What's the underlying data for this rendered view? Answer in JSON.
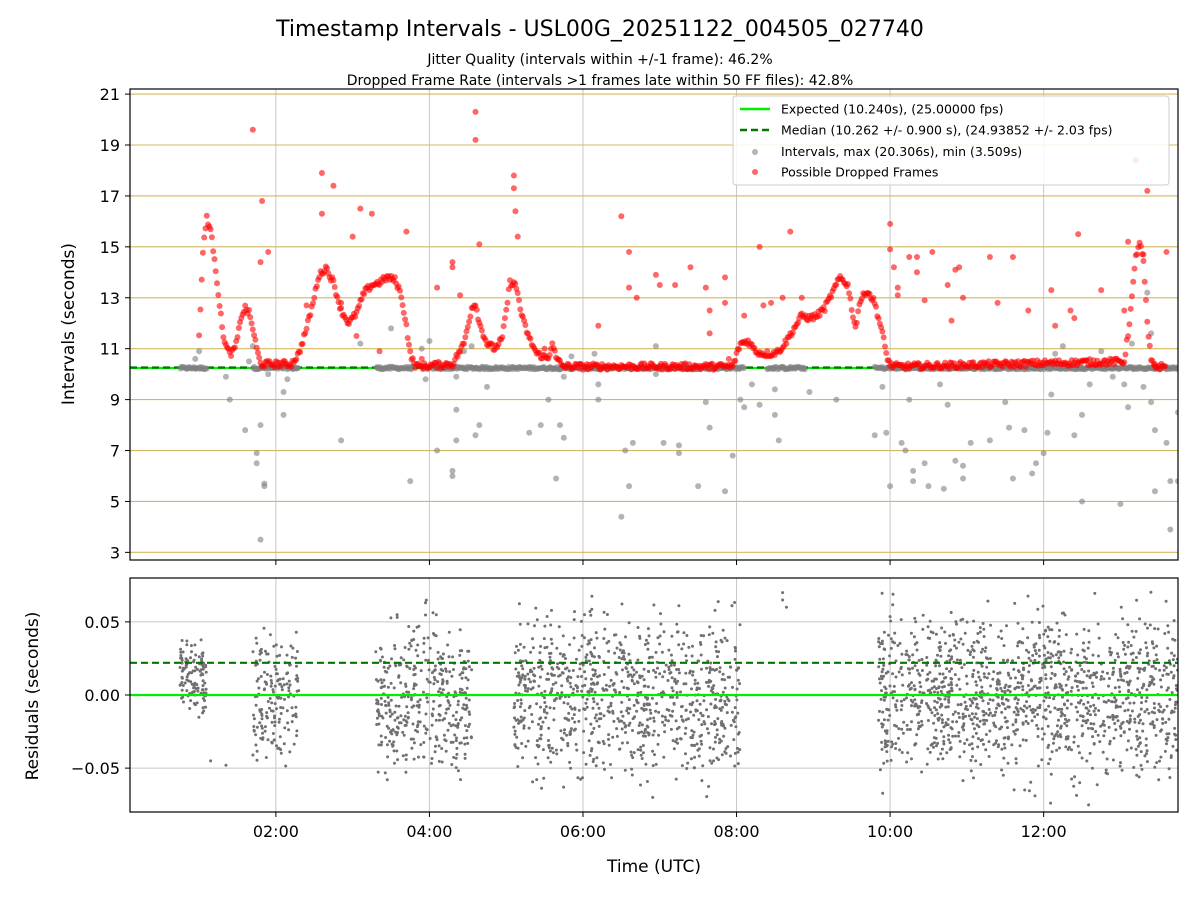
{
  "chart_data": {
    "type": "scatter",
    "title": "Timestamp Intervals - USL00G_20251122_004505_027740",
    "subtitle_1": "Jitter Quality (intervals within +/-1 frame): 46.2%",
    "subtitle_2": "Dropped Frame Rate (intervals >1 frames late within 50 FF files): 42.8%",
    "xlabel": "Time (UTC)",
    "x_unit": "hours (UTC)",
    "xlim": [
      0.1,
      13.75
    ],
    "x_ticks": [
      {
        "value": 2,
        "label": "02:00"
      },
      {
        "value": 4,
        "label": "04:00"
      },
      {
        "value": 6,
        "label": "06:00"
      },
      {
        "value": 8,
        "label": "08:00"
      },
      {
        "value": 10,
        "label": "10:00"
      },
      {
        "value": 12,
        "label": "12:00"
      }
    ],
    "colors": {
      "expected": "#00ee00",
      "median": "#007700",
      "intervals": "#808080",
      "dropped": "#ff0000",
      "interval_grid": "#d4b860",
      "grid": "#c8c8c8",
      "residual_points": "#707070"
    },
    "top_panel": {
      "ylabel": "Intervals (seconds)",
      "ylim": [
        2.7,
        21.2
      ],
      "y_ticks": [
        {
          "value": 3,
          "label": "3"
        },
        {
          "value": 5,
          "label": "5"
        },
        {
          "value": 7,
          "label": "7"
        },
        {
          "value": 9,
          "label": "9"
        },
        {
          "value": 11,
          "label": "11"
        },
        {
          "value": 13,
          "label": "13"
        },
        {
          "value": 15,
          "label": "15"
        },
        {
          "value": 17,
          "label": "17"
        },
        {
          "value": 19,
          "label": "19"
        },
        {
          "value": 21,
          "label": "21"
        }
      ],
      "expected_interval": 10.24,
      "median_interval": 10.262,
      "legend": [
        {
          "key": "expected",
          "label": "Expected (10.240s), (25.00000 fps)"
        },
        {
          "key": "median",
          "label": "Median (10.262 +/- 0.900 s), (24.93852 +/- 2.03 fps)"
        },
        {
          "key": "intervals",
          "label": "Intervals, max (20.306s), min (3.509s)"
        },
        {
          "key": "dropped",
          "label": "Possible Dropped Frames"
        }
      ],
      "legend_position": "top-right",
      "baseline_intervals": {
        "segments": [
          [
            0.75,
            1.1
          ],
          [
            1.7,
            2.3
          ],
          [
            3.3,
            3.8
          ],
          [
            3.9,
            8.1
          ],
          [
            8.4,
            8.9
          ],
          [
            9.8,
            13.75
          ]
        ],
        "level": 10.24,
        "spread": 0.05,
        "approx_count": 780
      },
      "dropped_trend": [
        [
          1.0,
          11.5
        ],
        [
          1.05,
          14.8
        ],
        [
          1.1,
          16.2
        ],
        [
          1.15,
          15.6
        ],
        [
          1.2,
          14.6
        ],
        [
          1.25,
          13.2
        ],
        [
          1.3,
          11.8
        ],
        [
          1.35,
          11.1
        ],
        [
          1.4,
          10.8
        ],
        [
          1.45,
          10.9
        ],
        [
          1.5,
          11.4
        ],
        [
          1.55,
          12.3
        ],
        [
          1.6,
          12.6
        ],
        [
          1.65,
          12.4
        ],
        [
          1.7,
          11.8
        ],
        [
          1.75,
          11.0
        ],
        [
          1.8,
          10.4
        ],
        [
          2.2,
          10.4
        ],
        [
          2.3,
          10.8
        ],
        [
          2.4,
          11.8
        ],
        [
          2.5,
          13.0
        ],
        [
          2.55,
          13.8
        ],
        [
          2.65,
          14.2
        ],
        [
          2.75,
          13.6
        ],
        [
          2.85,
          12.5
        ],
        [
          2.95,
          12.0
        ],
        [
          3.05,
          12.4
        ],
        [
          3.15,
          13.2
        ],
        [
          3.25,
          13.5
        ],
        [
          3.35,
          13.6
        ],
        [
          3.45,
          13.8
        ],
        [
          3.55,
          13.7
        ],
        [
          3.6,
          13.4
        ],
        [
          3.65,
          12.8
        ],
        [
          3.7,
          11.9
        ],
        [
          3.75,
          10.8
        ],
        [
          3.8,
          10.4
        ],
        [
          3.85,
          10.3
        ],
        [
          4.3,
          10.4
        ],
        [
          4.45,
          11.2
        ],
        [
          4.55,
          12.6
        ],
        [
          4.6,
          12.8
        ],
        [
          4.65,
          12.0
        ],
        [
          4.75,
          11.2
        ],
        [
          4.85,
          11.0
        ],
        [
          4.95,
          11.4
        ],
        [
          5.0,
          12.5
        ],
        [
          5.05,
          13.6
        ],
        [
          5.1,
          13.6
        ],
        [
          5.15,
          13.2
        ],
        [
          5.2,
          12.3
        ],
        [
          5.3,
          11.4
        ],
        [
          5.4,
          10.8
        ],
        [
          5.55,
          10.6
        ],
        [
          5.6,
          11.3
        ],
        [
          5.65,
          10.6
        ],
        [
          5.75,
          10.3
        ],
        [
          7.95,
          10.3
        ],
        [
          8.05,
          11.2
        ],
        [
          8.15,
          11.3
        ],
        [
          8.25,
          10.9
        ],
        [
          8.35,
          10.8
        ],
        [
          8.45,
          10.8
        ],
        [
          8.55,
          10.9
        ],
        [
          8.65,
          11.3
        ],
        [
          8.75,
          11.8
        ],
        [
          8.85,
          12.3
        ],
        [
          8.95,
          12.2
        ],
        [
          9.05,
          12.3
        ],
        [
          9.15,
          12.6
        ],
        [
          9.25,
          13.2
        ],
        [
          9.35,
          13.8
        ],
        [
          9.45,
          13.5
        ],
        [
          9.5,
          12.6
        ],
        [
          9.55,
          11.8
        ],
        [
          9.6,
          12.8
        ],
        [
          9.7,
          13.3
        ],
        [
          9.8,
          12.8
        ],
        [
          9.9,
          11.6
        ],
        [
          9.95,
          10.8
        ],
        [
          10.0,
          10.35
        ],
        [
          10.1,
          10.3
        ],
        [
          13.05,
          10.5
        ],
        [
          13.1,
          11.6
        ],
        [
          13.15,
          13.0
        ],
        [
          13.2,
          14.6
        ],
        [
          13.25,
          15.2
        ],
        [
          13.3,
          14.4
        ],
        [
          13.35,
          12.0
        ],
        [
          13.4,
          10.5
        ],
        [
          13.45,
          10.3
        ],
        [
          13.6,
          10.3
        ]
      ],
      "dropped_outliers": [
        [
          1.7,
          19.6
        ],
        [
          1.82,
          16.8
        ],
        [
          1.8,
          14.4
        ],
        [
          1.9,
          14.8
        ],
        [
          2.4,
          12.7
        ],
        [
          2.6,
          17.9
        ],
        [
          2.6,
          16.3
        ],
        [
          2.75,
          17.4
        ],
        [
          2.85,
          12.8
        ],
        [
          3.0,
          15.4
        ],
        [
          3.1,
          16.5
        ],
        [
          3.25,
          16.3
        ],
        [
          3.05,
          11.5
        ],
        [
          3.35,
          10.9
        ],
        [
          3.7,
          15.6
        ],
        [
          3.9,
          10.6
        ],
        [
          4.1,
          13.4
        ],
        [
          4.3,
          14.4
        ],
        [
          4.3,
          14.2
        ],
        [
          4.4,
          13.1
        ],
        [
          4.6,
          20.3
        ],
        [
          4.6,
          19.2
        ],
        [
          4.65,
          15.1
        ],
        [
          5.1,
          17.8
        ],
        [
          5.1,
          17.3
        ],
        [
          5.12,
          16.4
        ],
        [
          5.15,
          15.4
        ],
        [
          5.5,
          11.0
        ],
        [
          6.2,
          11.9
        ],
        [
          6.5,
          16.2
        ],
        [
          6.6,
          14.8
        ],
        [
          6.6,
          13.4
        ],
        [
          6.7,
          13.0
        ],
        [
          6.95,
          13.9
        ],
        [
          7.0,
          13.5
        ],
        [
          7.2,
          13.5
        ],
        [
          7.4,
          14.2
        ],
        [
          7.6,
          13.4
        ],
        [
          7.65,
          12.5
        ],
        [
          7.65,
          11.6
        ],
        [
          7.85,
          13.8
        ],
        [
          7.85,
          12.8
        ],
        [
          7.9,
          10.6
        ],
        [
          8.1,
          12.3
        ],
        [
          8.3,
          15.0
        ],
        [
          8.35,
          12.7
        ],
        [
          8.45,
          12.8
        ],
        [
          8.6,
          13.0
        ],
        [
          8.7,
          15.6
        ],
        [
          8.85,
          13.0
        ],
        [
          10.0,
          15.9
        ],
        [
          10.0,
          14.9
        ],
        [
          10.05,
          14.2
        ],
        [
          10.1,
          13.4
        ],
        [
          10.1,
          13.1
        ],
        [
          10.25,
          14.6
        ],
        [
          10.35,
          14.0
        ],
        [
          10.35,
          14.6
        ],
        [
          10.45,
          12.9
        ],
        [
          10.55,
          14.8
        ],
        [
          10.75,
          13.5
        ],
        [
          10.8,
          12.1
        ],
        [
          10.85,
          14.1
        ],
        [
          10.9,
          14.2
        ],
        [
          10.95,
          13.0
        ],
        [
          11.3,
          14.6
        ],
        [
          11.4,
          12.8
        ],
        [
          11.6,
          14.6
        ],
        [
          11.8,
          12.5
        ],
        [
          12.1,
          13.3
        ],
        [
          12.15,
          11.9
        ],
        [
          12.35,
          12.5
        ],
        [
          12.4,
          12.2
        ],
        [
          12.45,
          15.5
        ],
        [
          12.75,
          13.3
        ],
        [
          13.05,
          12.5
        ],
        [
          13.1,
          15.2
        ],
        [
          13.2,
          18.4
        ],
        [
          13.3,
          14.7
        ],
        [
          13.35,
          17.2
        ],
        [
          13.45,
          10.4
        ],
        [
          13.6,
          14.8
        ]
      ],
      "interval_outliers": [
        [
          0.95,
          10.6
        ],
        [
          1.0,
          10.9
        ],
        [
          1.35,
          9.9
        ],
        [
          1.4,
          9.0
        ],
        [
          1.6,
          7.8
        ],
        [
          1.65,
          10.5
        ],
        [
          1.7,
          11.1
        ],
        [
          1.75,
          6.9
        ],
        [
          1.75,
          6.5
        ],
        [
          1.8,
          3.5
        ],
        [
          1.8,
          8.0
        ],
        [
          1.85,
          5.6
        ],
        [
          1.85,
          5.7
        ],
        [
          1.9,
          10.0
        ],
        [
          2.1,
          8.4
        ],
        [
          2.1,
          9.3
        ],
        [
          2.15,
          9.8
        ],
        [
          2.85,
          7.4
        ],
        [
          3.1,
          11.2
        ],
        [
          3.5,
          11.8
        ],
        [
          3.75,
          5.8
        ],
        [
          3.9,
          11.0
        ],
        [
          3.95,
          9.8
        ],
        [
          4.0,
          11.3
        ],
        [
          4.1,
          7.0
        ],
        [
          4.3,
          6.2
        ],
        [
          4.3,
          6.0
        ],
        [
          4.35,
          7.4
        ],
        [
          4.35,
          8.6
        ],
        [
          4.35,
          9.9
        ],
        [
          4.45,
          10.9
        ],
        [
          4.55,
          11.1
        ],
        [
          4.6,
          7.6
        ],
        [
          4.65,
          8.0
        ],
        [
          4.75,
          9.5
        ],
        [
          5.3,
          7.7
        ],
        [
          5.45,
          8.0
        ],
        [
          5.55,
          9.0
        ],
        [
          5.65,
          5.9
        ],
        [
          5.7,
          8.0
        ],
        [
          5.75,
          7.5
        ],
        [
          5.75,
          9.9
        ],
        [
          5.85,
          10.7
        ],
        [
          6.15,
          10.8
        ],
        [
          6.2,
          9.6
        ],
        [
          6.2,
          9.0
        ],
        [
          6.5,
          4.4
        ],
        [
          6.55,
          7.0
        ],
        [
          6.6,
          5.6
        ],
        [
          6.65,
          7.3
        ],
        [
          6.95,
          11.1
        ],
        [
          6.95,
          10.0
        ],
        [
          7.05,
          7.3
        ],
        [
          7.25,
          7.2
        ],
        [
          7.25,
          6.9
        ],
        [
          7.5,
          5.6
        ],
        [
          7.6,
          8.9
        ],
        [
          7.65,
          7.9
        ],
        [
          7.85,
          5.4
        ],
        [
          7.95,
          6.8
        ],
        [
          8.05,
          9.0
        ],
        [
          8.1,
          8.7
        ],
        [
          8.2,
          9.6
        ],
        [
          8.3,
          8.8
        ],
        [
          8.5,
          9.4
        ],
        [
          8.5,
          8.4
        ],
        [
          8.55,
          7.4
        ],
        [
          8.95,
          9.3
        ],
        [
          9.3,
          9.0
        ],
        [
          9.8,
          7.6
        ],
        [
          9.9,
          9.5
        ],
        [
          9.95,
          7.7
        ],
        [
          10.0,
          5.6
        ],
        [
          10.15,
          7.3
        ],
        [
          10.2,
          7.0
        ],
        [
          10.25,
          9.0
        ],
        [
          10.3,
          6.2
        ],
        [
          10.3,
          5.8
        ],
        [
          10.45,
          6.5
        ],
        [
          10.5,
          5.6
        ],
        [
          10.65,
          9.6
        ],
        [
          10.7,
          5.5
        ],
        [
          10.75,
          8.8
        ],
        [
          10.85,
          6.6
        ],
        [
          10.95,
          6.4
        ],
        [
          10.95,
          5.9
        ],
        [
          11.05,
          7.3
        ],
        [
          11.3,
          7.4
        ],
        [
          11.5,
          8.9
        ],
        [
          11.55,
          7.9
        ],
        [
          11.6,
          5.9
        ],
        [
          11.75,
          7.8
        ],
        [
          11.85,
          6.1
        ],
        [
          11.9,
          6.5
        ],
        [
          12.0,
          6.9
        ],
        [
          12.05,
          7.7
        ],
        [
          12.1,
          9.2
        ],
        [
          12.15,
          10.8
        ],
        [
          12.25,
          11.1
        ],
        [
          12.4,
          7.6
        ],
        [
          12.5,
          5.0
        ],
        [
          12.5,
          8.4
        ],
        [
          12.6,
          9.6
        ],
        [
          12.75,
          10.9
        ],
        [
          12.9,
          9.9
        ],
        [
          13.0,
          4.9
        ],
        [
          13.05,
          9.6
        ],
        [
          13.1,
          8.7
        ],
        [
          13.15,
          11.2
        ],
        [
          13.3,
          9.5
        ],
        [
          13.35,
          13.2
        ],
        [
          13.4,
          11.6
        ],
        [
          13.4,
          8.9
        ],
        [
          13.45,
          7.8
        ],
        [
          13.45,
          5.4
        ],
        [
          13.6,
          7.3
        ],
        [
          13.65,
          3.9
        ],
        [
          13.65,
          5.8
        ],
        [
          13.75,
          5.8
        ],
        [
          13.75,
          8.5
        ]
      ]
    },
    "bottom_panel": {
      "ylabel": "Residuals (seconds)",
      "ylim": [
        -0.08,
        0.08
      ],
      "y_ticks": [
        {
          "value": 0.05,
          "label": "0.05"
        },
        {
          "value": 0.0,
          "label": "0.00"
        },
        {
          "value": -0.05,
          "label": "−0.05"
        }
      ],
      "expected_line": 0.0,
      "median_line": 0.022,
      "residual_clusters": [
        {
          "x_range": [
            0.75,
            1.1
          ],
          "count": 120,
          "y_range": [
            -0.03,
            0.047
          ]
        },
        {
          "x_range": [
            1.7,
            2.3
          ],
          "count": 170,
          "y_range": [
            -0.07,
            0.065
          ]
        },
        {
          "x_range": [
            3.3,
            4.55
          ],
          "count": 380,
          "y_range": [
            -0.08,
            0.075
          ]
        },
        {
          "x_range": [
            5.1,
            8.05
          ],
          "count": 900,
          "y_range": [
            -0.08,
            0.078
          ]
        },
        {
          "x_range": [
            9.85,
            13.75
          ],
          "count": 1300,
          "y_range": [
            -0.08,
            0.08
          ]
        }
      ],
      "residual_outliers": [
        [
          1.15,
          -0.045
        ],
        [
          1.35,
          -0.048
        ],
        [
          8.6,
          0.07
        ],
        [
          8.6,
          0.065
        ],
        [
          8.65,
          0.06
        ]
      ]
    }
  }
}
